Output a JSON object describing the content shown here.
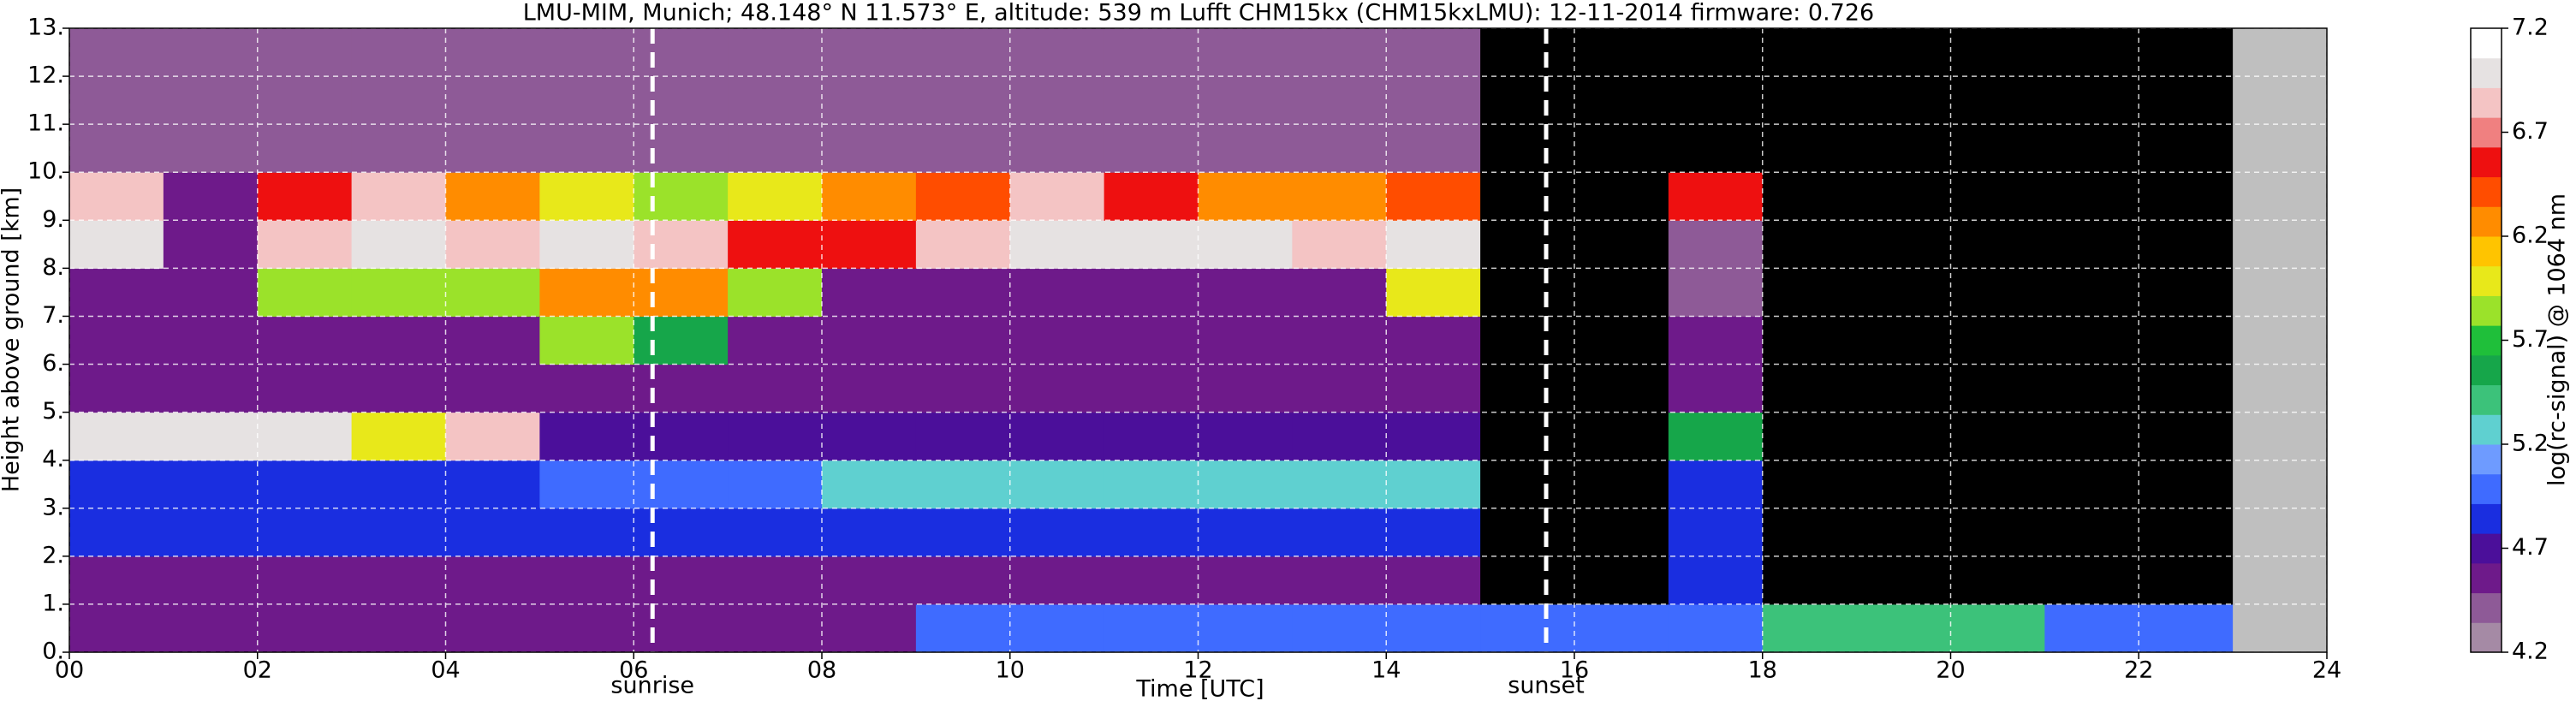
{
  "chart_data": {
    "type": "heatmap",
    "title": "LMU-MIM, Munich; 48.148° N 11.573° E, altitude: 539 m    Lufft CHM15kx (CHM15kxLMU): 12-11-2014    firmware: 0.726",
    "xlabel": "Time [UTC]",
    "ylabel": "Height above ground [km]",
    "colorbar_label": "log(rc-signal) @ 1064 nm",
    "xlim": [
      0,
      24
    ],
    "ylim": [
      0,
      13
    ],
    "xticks": [
      {
        "value": 0,
        "label": "00"
      },
      {
        "value": 2,
        "label": "02"
      },
      {
        "value": 4,
        "label": "04"
      },
      {
        "value": 6,
        "label": "06"
      },
      {
        "value": 8,
        "label": "08"
      },
      10,
      12,
      14,
      16,
      18,
      20,
      22,
      24
    ],
    "yticks": [
      {
        "value": 0,
        "label": "0."
      },
      {
        "value": 1,
        "label": "1."
      },
      {
        "value": 2,
        "label": "2."
      },
      {
        "value": 3,
        "label": "3."
      },
      {
        "value": 4,
        "label": "4."
      },
      {
        "value": 5,
        "label": "5."
      },
      {
        "value": 6,
        "label": "6."
      },
      {
        "value": 7,
        "label": "7."
      },
      {
        "value": 8,
        "label": "8."
      },
      {
        "value": 9,
        "label": "9."
      },
      {
        "value": 10,
        "label": "10."
      },
      {
        "value": 11,
        "label": "11."
      },
      {
        "value": 12,
        "label": "12."
      },
      {
        "value": 13,
        "label": "13."
      }
    ],
    "zlim": [
      4.2,
      7.2
    ],
    "zticks": [
      4.2,
      4.7,
      5.2,
      5.7,
      6.2,
      6.7,
      7.2
    ],
    "colormap": [
      "#a58aa5",
      "#8e5a97",
      "#6e1a8a",
      "#4b0f9a",
      "#1a2ee0",
      "#3f6bff",
      "#6e9bff",
      "#5fd0d0",
      "#3cc27a",
      "#16a64a",
      "#1fbf3a",
      "#9be22a",
      "#e8e81a",
      "#ffc400",
      "#ff8c00",
      "#ff4d00",
      "#ee1010",
      "#f08080",
      "#f4c4c4",
      "#e6e2e2",
      "#ffffff"
    ],
    "below_color": "#000000",
    "nodata_color": "#bfbfbf",
    "grid": true,
    "annotations": [
      {
        "text": "sunrise",
        "x": 6.2
      },
      {
        "text": "sunset",
        "x": 15.7
      }
    ],
    "xbins": [
      0,
      1,
      2,
      3,
      4,
      5,
      6,
      7,
      8,
      9,
      10,
      11,
      12,
      13,
      14,
      15,
      16,
      17,
      18,
      19,
      20,
      21,
      22,
      23,
      24
    ],
    "ybins": [
      0,
      1,
      2,
      3,
      4,
      5,
      6,
      7,
      8,
      9,
      10,
      11,
      12,
      13
    ],
    "z": [
      [
        4.5,
        4.5,
        4.5,
        4.5,
        4.5,
        4.5,
        4.5,
        4.5,
        4.5,
        5.0,
        5.0,
        5.0,
        5.0,
        5.0,
        5.0,
        5.0,
        5.0,
        5.0,
        5.4,
        5.4,
        5.4,
        5.0,
        5.0,
        null
      ],
      [
        4.6,
        4.6,
        4.6,
        4.6,
        4.6,
        4.6,
        4.6,
        4.6,
        4.6,
        4.6,
        4.6,
        4.6,
        4.6,
        4.6,
        4.6,
        4.0,
        4.0,
        4.8,
        4.0,
        4.0,
        4.0,
        4.0,
        4.0,
        null
      ],
      [
        4.8,
        4.8,
        4.8,
        4.8,
        4.8,
        4.8,
        4.8,
        4.8,
        4.8,
        4.8,
        4.8,
        4.8,
        4.8,
        4.8,
        4.8,
        4.0,
        4.0,
        4.8,
        4.0,
        4.0,
        4.0,
        4.0,
        4.0,
        null
      ],
      [
        4.9,
        4.9,
        4.9,
        4.9,
        4.9,
        5.0,
        5.0,
        5.0,
        5.2,
        5.2,
        5.2,
        5.2,
        5.2,
        5.2,
        5.2,
        4.0,
        4.0,
        4.8,
        4.0,
        4.0,
        4.0,
        4.0,
        4.0,
        null
      ],
      [
        7.0,
        7.0,
        7.0,
        6.0,
        6.8,
        4.7,
        4.7,
        4.7,
        4.7,
        4.7,
        4.7,
        4.7,
        4.7,
        4.7,
        4.7,
        4.0,
        4.0,
        5.5,
        4.0,
        4.0,
        4.0,
        4.0,
        4.0,
        null
      ],
      [
        4.5,
        4.5,
        4.5,
        4.5,
        4.5,
        4.5,
        4.5,
        4.5,
        4.5,
        4.5,
        4.5,
        4.5,
        4.5,
        4.5,
        4.5,
        4.0,
        4.0,
        4.6,
        4.0,
        4.0,
        4.0,
        4.0,
        4.0,
        null
      ],
      [
        4.5,
        4.5,
        4.5,
        4.5,
        4.5,
        5.8,
        5.5,
        4.5,
        4.5,
        4.5,
        4.5,
        4.5,
        4.5,
        4.5,
        4.5,
        4.0,
        4.0,
        4.5,
        4.0,
        4.0,
        4.0,
        4.0,
        4.0,
        null
      ],
      [
        4.5,
        4.5,
        5.8,
        5.8,
        5.8,
        6.2,
        6.2,
        5.8,
        4.6,
        4.6,
        4.6,
        4.6,
        4.6,
        4.6,
        6.0,
        4.0,
        4.0,
        4.4,
        4.0,
        4.0,
        4.0,
        4.0,
        4.0,
        null
      ],
      [
        7.0,
        4.5,
        6.8,
        7.0,
        6.9,
        7.0,
        6.8,
        6.5,
        6.5,
        6.9,
        7.0,
        7.0,
        7.0,
        6.9,
        7.0,
        4.0,
        4.0,
        4.4,
        4.0,
        4.0,
        4.0,
        4.0,
        4.0,
        null
      ],
      [
        6.8,
        4.6,
        6.5,
        6.8,
        6.2,
        6.0,
        5.8,
        6.0,
        6.2,
        6.4,
        6.8,
        6.5,
        6.2,
        6.3,
        6.4,
        4.0,
        4.0,
        6.5,
        4.0,
        4.0,
        4.0,
        4.0,
        4.0,
        null
      ],
      [
        4.4,
        4.4,
        4.4,
        4.4,
        4.4,
        4.4,
        4.4,
        4.4,
        4.4,
        4.4,
        4.4,
        4.4,
        4.4,
        4.4,
        4.4,
        4.1,
        4.1,
        4.1,
        4.1,
        4.1,
        4.1,
        4.1,
        4.1,
        null
      ],
      [
        4.4,
        4.4,
        4.4,
        4.4,
        4.4,
        4.4,
        4.4,
        4.4,
        4.4,
        4.4,
        4.4,
        4.4,
        4.4,
        4.4,
        4.4,
        4.1,
        4.1,
        4.1,
        4.1,
        4.1,
        4.1,
        4.1,
        4.1,
        null
      ],
      [
        4.4,
        4.4,
        4.4,
        4.4,
        4.4,
        4.4,
        4.4,
        4.4,
        4.4,
        4.4,
        4.4,
        4.4,
        4.4,
        4.4,
        4.4,
        4.1,
        4.1,
        4.1,
        4.1,
        4.1,
        4.1,
        4.1,
        4.1,
        null
      ]
    ]
  }
}
